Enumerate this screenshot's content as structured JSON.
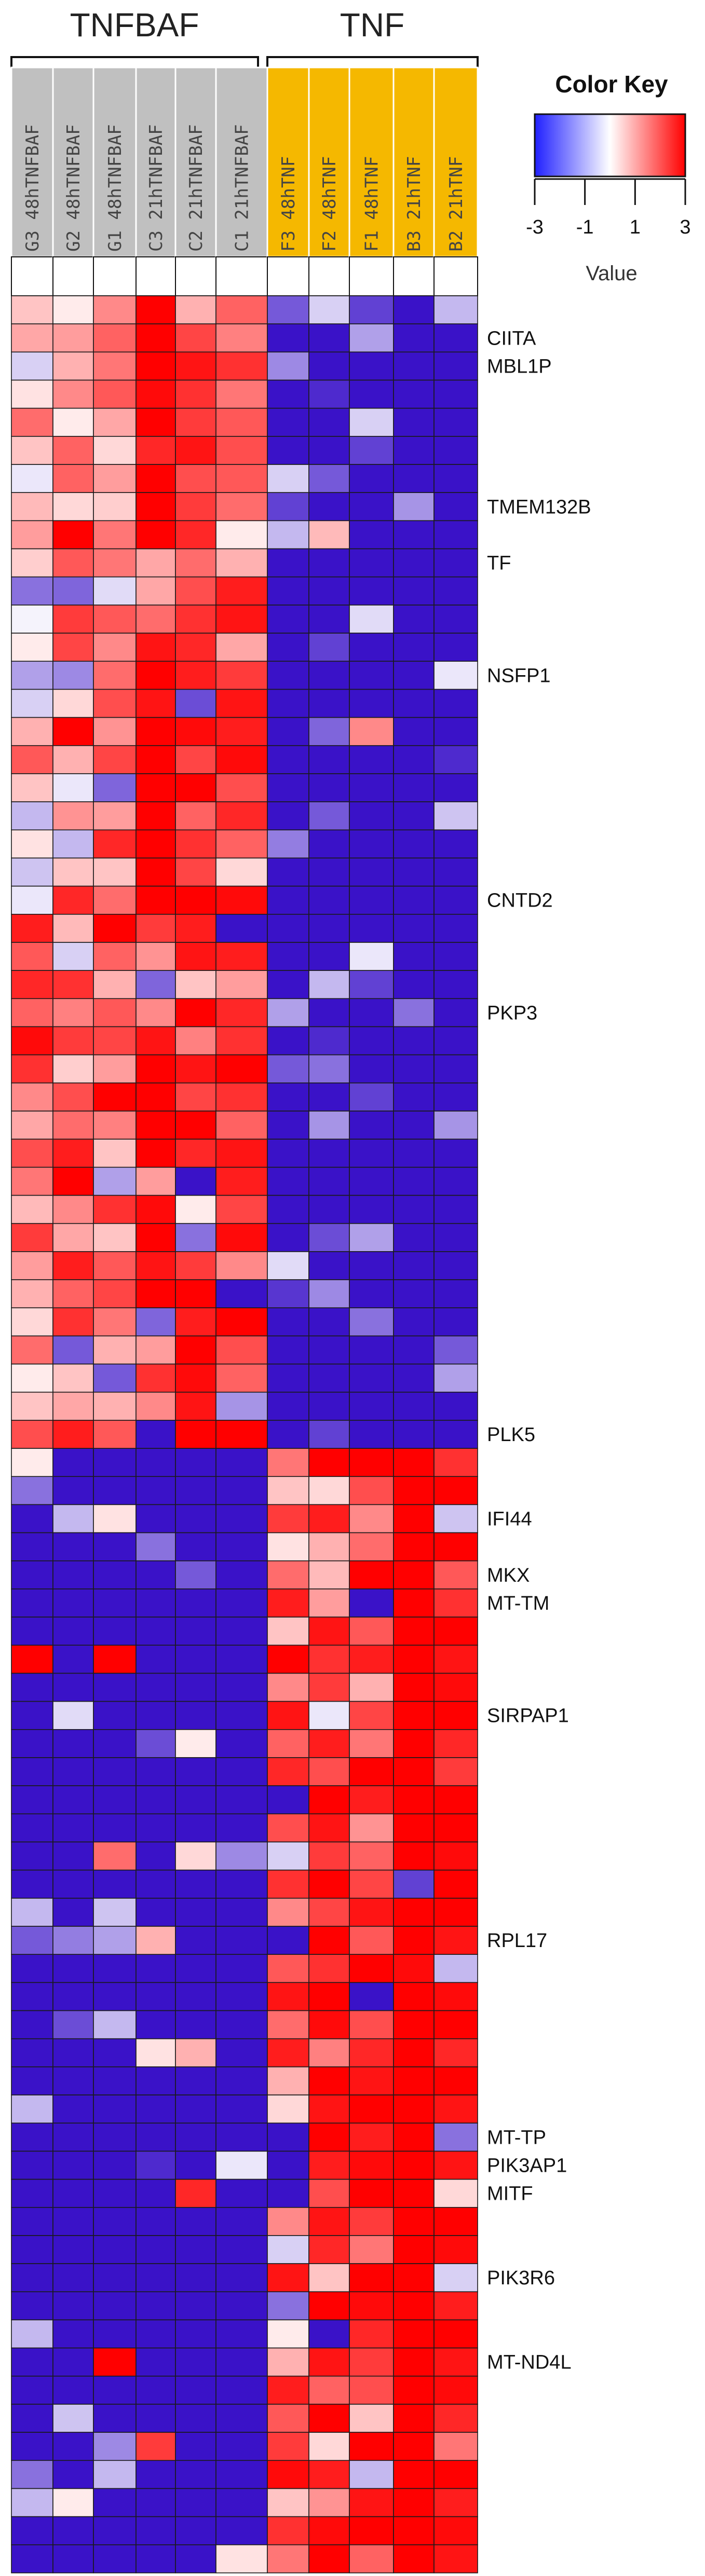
{
  "chart_data": {
    "type": "heatmap",
    "groups": [
      {
        "name": "TNFBAF",
        "columns": [
          0,
          1,
          2,
          3,
          4,
          5
        ]
      },
      {
        "name": "TNF",
        "columns": [
          6,
          7,
          8,
          9,
          10
        ]
      }
    ],
    "columns": [
      "G3 48hTNFBAF",
      "G2 48hTNFBAF",
      "G1 48hTNFBAF",
      "C3 21hTNFBAF",
      "C2 21hTNFBAF",
      "C1 21hTNFBAF",
      "F3 48hTNF",
      "F2 48hTNF",
      "F1 48hTNF",
      "B3 21hTNF",
      "B2 21hTNF"
    ],
    "column_header_colors": {
      "TNFBAF": "#c0c0c0",
      "TNF": "#f5b800"
    },
    "color_scale": {
      "min": -3,
      "max": 3,
      "low": "#2020ff",
      "mid": "#ffffff",
      "high": "#ff0000",
      "cell_low": "#3a12c8"
    },
    "color_key": {
      "title": "Color Key",
      "ticks": [
        -3,
        -1,
        1,
        3
      ],
      "axis_label": "Value"
    },
    "row_labels": [
      {
        "row": 1,
        "label": "CIITA"
      },
      {
        "row": 2,
        "label": "MBL1P"
      },
      {
        "row": 7,
        "label": "TMEM132B"
      },
      {
        "row": 9,
        "label": "TF"
      },
      {
        "row": 13,
        "label": "NSFP1"
      },
      {
        "row": 21,
        "label": "CNTD2"
      },
      {
        "row": 25,
        "label": "PKP3"
      },
      {
        "row": 40,
        "label": "PLK5"
      },
      {
        "row": 43,
        "label": "IFI44"
      },
      {
        "row": 45,
        "label": "MKX"
      },
      {
        "row": 46,
        "label": "MT-TM"
      },
      {
        "row": 50,
        "label": "SIRPAP1"
      },
      {
        "row": 58,
        "label": "RPL17"
      },
      {
        "row": 65,
        "label": "MT-TP"
      },
      {
        "row": 66,
        "label": "PIK3AP1"
      },
      {
        "row": 67,
        "label": "MITF"
      },
      {
        "row": 70,
        "label": "PIK3R6"
      },
      {
        "row": 73,
        "label": "MT-ND4L"
      }
    ],
    "values": [
      [
        0.6,
        0.2,
        1.2,
        2.6,
        0.8,
        1.6,
        -1.4,
        -0.4,
        -1.6,
        -2.5,
        -0.6
      ],
      [
        0.9,
        1.0,
        1.6,
        2.7,
        1.9,
        1.3,
        -2.2,
        -2.4,
        -0.8,
        -2.3,
        -2.2
      ],
      [
        -0.4,
        0.8,
        1.4,
        2.9,
        2.4,
        2.1,
        -1.0,
        -2.3,
        -2.6,
        -2.2,
        -2.0
      ],
      [
        0.3,
        1.2,
        1.7,
        2.5,
        2.1,
        1.4,
        -2.3,
        -1.8,
        -2.2,
        -2.6,
        -2.0
      ],
      [
        1.5,
        0.2,
        0.9,
        2.8,
        2.0,
        1.7,
        -2.2,
        -2.3,
        -0.4,
        -2.4,
        -2.1
      ],
      [
        0.6,
        1.6,
        0.4,
        2.2,
        2.4,
        1.8,
        -2.5,
        -2.2,
        -1.6,
        -2.3,
        -2.0
      ],
      [
        -0.2,
        1.6,
        1.0,
        3.0,
        1.8,
        1.7,
        -0.4,
        -1.4,
        -2.7,
        -2.5,
        -2.1
      ],
      [
        0.7,
        0.4,
        0.5,
        2.9,
        2.0,
        1.5,
        -1.6,
        -2.3,
        -2.0,
        -0.9,
        -2.5
      ],
      [
        1.0,
        2.7,
        1.4,
        2.7,
        2.2,
        0.2,
        -0.6,
        0.7,
        -2.6,
        -2.5,
        -2.3
      ],
      [
        0.5,
        1.7,
        1.4,
        0.9,
        1.5,
        0.8,
        -2.6,
        -2.3,
        -2.4,
        -2.5,
        -2.2
      ],
      [
        -1.2,
        -1.3,
        -0.3,
        0.9,
        1.8,
        2.3,
        -2.6,
        -2.4,
        -2.1,
        -2.3,
        -2.2
      ],
      [
        -0.1,
        2.0,
        1.7,
        1.5,
        2.1,
        2.4,
        -2.5,
        -2.2,
        -0.3,
        -2.5,
        -2.3
      ],
      [
        0.2,
        1.9,
        1.2,
        2.4,
        2.2,
        0.9,
        -2.2,
        -1.6,
        -2.4,
        -2.3,
        -2.2
      ],
      [
        -0.8,
        -1.0,
        1.5,
        2.6,
        2.3,
        2.0,
        -2.4,
        -2.2,
        -2.3,
        -2.5,
        -0.2
      ],
      [
        -0.4,
        0.4,
        1.8,
        2.4,
        -1.5,
        2.4,
        -2.5,
        -2.2,
        -2.6,
        -2.4,
        -2.2
      ],
      [
        0.8,
        2.8,
        1.1,
        2.9,
        2.5,
        2.3,
        -2.6,
        -1.3,
        1.2,
        -2.2,
        -2.1
      ],
      [
        1.7,
        0.8,
        1.9,
        2.7,
        1.9,
        2.5,
        -2.4,
        -2.2,
        -2.3,
        -2.3,
        -1.8
      ],
      [
        0.6,
        -0.2,
        -1.3,
        2.8,
        2.7,
        1.8,
        -2.5,
        -2.4,
        -2.2,
        -2.6,
        -2.1
      ],
      [
        -0.6,
        1.1,
        1.0,
        2.6,
        1.6,
        2.2,
        -2.3,
        -1.4,
        -2.5,
        -2.4,
        -0.5
      ],
      [
        0.3,
        -0.6,
        2.2,
        2.8,
        2.1,
        1.6,
        -1.1,
        -2.2,
        -2.3,
        -2.2,
        -2.2
      ],
      [
        -0.5,
        0.6,
        0.6,
        2.7,
        1.9,
        0.4,
        -2.6,
        -2.3,
        -2.4,
        -2.6,
        -2.3
      ],
      [
        -0.2,
        2.2,
        1.5,
        2.9,
        2.6,
        2.5,
        -2.5,
        -2.1,
        -2.2,
        -2.5,
        -2.2
      ],
      [
        2.3,
        0.7,
        2.6,
        2.0,
        2.3,
        -2.2,
        -2.4,
        -2.6,
        -2.3,
        -2.4,
        -2.3
      ],
      [
        1.7,
        -0.4,
        1.6,
        1.1,
        2.4,
        2.3,
        -2.2,
        -2.0,
        -0.2,
        -2.3,
        -2.1
      ],
      [
        2.2,
        2.1,
        0.8,
        -1.3,
        0.6,
        1.0,
        -2.3,
        -0.6,
        -1.6,
        -2.5,
        -2.2
      ],
      [
        1.6,
        1.3,
        1.7,
        1.2,
        2.7,
        2.2,
        -0.8,
        -2.2,
        -2.4,
        -1.2,
        -2.3
      ],
      [
        2.5,
        2.0,
        1.9,
        2.4,
        1.3,
        2.1,
        -2.6,
        -1.8,
        -2.2,
        -2.4,
        -2.1
      ],
      [
        2.1,
        0.5,
        1.0,
        2.8,
        2.4,
        2.6,
        -1.4,
        -1.2,
        -2.3,
        -2.2,
        -2.2
      ],
      [
        1.2,
        1.8,
        2.6,
        2.8,
        1.9,
        2.1,
        -2.3,
        -2.1,
        -1.6,
        -2.5,
        -2.2
      ],
      [
        0.9,
        1.5,
        1.3,
        2.6,
        2.7,
        1.6,
        -2.0,
        -0.9,
        -2.6,
        -2.3,
        -0.9
      ],
      [
        1.8,
        2.3,
        0.6,
        2.6,
        2.2,
        2.4,
        -2.4,
        -2.2,
        -2.3,
        -2.5,
        -2.3
      ],
      [
        1.4,
        2.6,
        -0.8,
        1.0,
        -2.0,
        2.3,
        -2.3,
        -2.0,
        -2.1,
        -2.4,
        -2.2
      ],
      [
        0.7,
        1.2,
        2.1,
        2.5,
        0.2,
        1.9,
        -2.6,
        -2.4,
        -2.3,
        -2.5,
        -2.1
      ],
      [
        2.0,
        0.9,
        0.6,
        2.9,
        -1.2,
        2.5,
        -2.3,
        -1.5,
        -0.8,
        -2.3,
        -2.2
      ],
      [
        1.0,
        2.3,
        1.7,
        2.4,
        2.0,
        1.2,
        -0.3,
        -2.1,
        -2.2,
        -2.6,
        -2.2
      ],
      [
        0.8,
        1.6,
        1.9,
        2.7,
        2.6,
        -2.0,
        -1.7,
        -1.0,
        -2.5,
        -2.3,
        -2.4
      ],
      [
        0.4,
        2.1,
        1.4,
        -1.3,
        2.3,
        2.6,
        -2.2,
        -2.0,
        -1.2,
        -2.5,
        -2.1
      ],
      [
        1.5,
        -1.4,
        0.8,
        1.0,
        2.7,
        1.8,
        -2.0,
        -2.4,
        -2.3,
        -2.2,
        -1.4
      ],
      [
        0.2,
        0.6,
        -1.4,
        2.1,
        2.5,
        1.6,
        -2.4,
        -2.2,
        -2.1,
        -2.3,
        -0.8
      ],
      [
        0.6,
        0.9,
        0.8,
        1.2,
        2.4,
        -0.9,
        -2.6,
        -2.1,
        -2.4,
        -2.5,
        -2.2
      ],
      [
        1.8,
        2.3,
        1.7,
        -2.3,
        2.6,
        2.7,
        -2.2,
        -1.6,
        -2.2,
        -2.6,
        -2.2
      ],
      [
        0.2,
        -2.4,
        -2.4,
        -2.5,
        -2.4,
        -2.3,
        1.4,
        2.6,
        2.8,
        2.9,
        2.1
      ],
      [
        -1.2,
        -2.2,
        -2.2,
        -2.3,
        -2.3,
        -2.1,
        0.6,
        0.4,
        1.8,
        2.7,
        2.6
      ],
      [
        -2.5,
        -0.6,
        0.3,
        -2.4,
        -2.4,
        -2.3,
        2.0,
        2.3,
        1.2,
        2.8,
        -0.5
      ],
      [
        -2.4,
        -2.3,
        -2.6,
        -1.2,
        -2.4,
        -2.2,
        0.3,
        0.8,
        1.5,
        3.0,
        2.6
      ],
      [
        -2.3,
        -2.6,
        -2.5,
        -2.2,
        -1.4,
        -2.4,
        1.5,
        0.7,
        2.7,
        2.8,
        1.7
      ],
      [
        -2.4,
        -2.3,
        -2.2,
        -2.4,
        -2.3,
        -2.1,
        2.3,
        1.0,
        -2.3,
        2.9,
        2.1
      ],
      [
        -2.5,
        -2.4,
        -2.5,
        -2.3,
        -2.4,
        -2.2,
        0.6,
        2.4,
        1.7,
        2.6,
        2.9
      ],
      [
        2.8,
        -2.3,
        2.6,
        -2.4,
        -2.5,
        -2.4,
        2.6,
        2.1,
        2.3,
        3.0,
        2.4
      ],
      [
        -2.2,
        -2.4,
        -2.3,
        -2.2,
        -2.3,
        -2.1,
        1.2,
        2.0,
        0.8,
        2.9,
        2.5
      ],
      [
        -2.6,
        -0.3,
        -2.4,
        -2.4,
        -2.3,
        -2.2,
        2.4,
        -0.2,
        1.9,
        2.7,
        2.6
      ],
      [
        -2.3,
        -2.2,
        -2.5,
        -1.5,
        0.2,
        -2.3,
        1.6,
        2.3,
        1.4,
        3.0,
        2.2
      ],
      [
        -2.4,
        -2.3,
        -2.2,
        -2.4,
        -2.2,
        -2.4,
        2.2,
        1.8,
        2.6,
        2.8,
        2.0
      ],
      [
        -2.5,
        -2.4,
        -2.3,
        -2.3,
        -2.5,
        -2.2,
        -2.2,
        2.6,
        2.3,
        2.7,
        2.6
      ],
      [
        -2.2,
        -2.3,
        -2.4,
        -2.6,
        -2.3,
        -2.3,
        1.8,
        2.4,
        1.1,
        2.9,
        2.8
      ],
      [
        -2.3,
        -2.5,
        1.5,
        -2.2,
        0.4,
        -1.0,
        -0.4,
        2.0,
        1.6,
        2.8,
        2.5
      ],
      [
        -2.4,
        -2.2,
        -2.3,
        -2.4,
        -2.2,
        -2.3,
        2.1,
        2.7,
        1.9,
        -1.6,
        2.7
      ],
      [
        -0.6,
        -2.3,
        -0.5,
        -2.3,
        -2.5,
        -2.2,
        1.2,
        1.9,
        2.4,
        2.8,
        2.6
      ],
      [
        -1.4,
        -1.1,
        -0.8,
        0.8,
        -2.0,
        -2.1,
        -2.1,
        2.6,
        1.7,
        2.9,
        2.4
      ],
      [
        -2.3,
        -2.4,
        -2.2,
        -2.5,
        -2.3,
        -2.3,
        1.7,
        2.1,
        2.7,
        2.5,
        -0.6
      ],
      [
        -2.4,
        -2.3,
        -2.3,
        -2.2,
        -2.4,
        -2.2,
        2.4,
        2.8,
        -2.3,
        2.8,
        2.5
      ],
      [
        -2.2,
        -1.5,
        -0.6,
        -2.4,
        -2.1,
        -2.3,
        1.5,
        2.5,
        1.8,
        3.0,
        2.7
      ],
      [
        -2.3,
        -2.2,
        -2.5,
        0.3,
        0.8,
        -2.2,
        2.3,
        1.3,
        2.2,
        2.9,
        2.2
      ],
      [
        -2.5,
        -2.4,
        -2.3,
        -2.6,
        -2.2,
        -2.4,
        0.8,
        2.7,
        2.4,
        2.8,
        2.6
      ],
      [
        -0.6,
        -2.2,
        -2.4,
        -2.3,
        -2.4,
        -2.2,
        0.4,
        2.4,
        2.8,
        2.9,
        2.4
      ],
      [
        -2.4,
        -2.3,
        -2.2,
        -2.4,
        -2.3,
        -2.3,
        -2.2,
        2.6,
        2.3,
        2.8,
        -1.2
      ],
      [
        -2.3,
        -2.5,
        -2.3,
        -1.8,
        -2.4,
        -0.2,
        -2.4,
        2.3,
        2.5,
        3.0,
        2.4
      ],
      [
        -2.2,
        -2.3,
        -2.4,
        -2.2,
        2.2,
        -2.3,
        -2.3,
        1.8,
        2.7,
        2.9,
        0.4
      ],
      [
        -2.4,
        -2.2,
        -2.2,
        -2.5,
        -2.3,
        -2.2,
        1.2,
        2.4,
        2.0,
        2.8,
        2.6
      ],
      [
        -2.3,
        -2.4,
        -2.3,
        -2.2,
        -2.3,
        -2.4,
        -0.4,
        2.2,
        1.4,
        3.0,
        2.5
      ],
      [
        -2.2,
        -2.3,
        -2.5,
        -2.4,
        -2.2,
        -2.3,
        2.4,
        0.6,
        2.6,
        2.7,
        -0.4
      ],
      [
        -2.5,
        -2.2,
        -2.3,
        -2.3,
        -2.5,
        -2.2,
        -1.2,
        2.7,
        2.5,
        2.9,
        2.3
      ],
      [
        -0.6,
        -2.3,
        -2.2,
        -2.4,
        -2.3,
        -2.3,
        0.2,
        -2.2,
        2.2,
        2.8,
        2.6
      ],
      [
        -2.4,
        -2.4,
        2.6,
        -2.2,
        -2.4,
        -2.1,
        0.8,
        2.4,
        2.0,
        3.0,
        2.4
      ],
      [
        -2.3,
        -2.2,
        -2.3,
        -2.4,
        -2.2,
        -2.3,
        2.3,
        1.6,
        1.8,
        2.8,
        2.5
      ],
      [
        -2.2,
        -0.5,
        -2.4,
        -2.2,
        -2.3,
        -2.2,
        1.7,
        2.8,
        0.6,
        2.9,
        2.2
      ],
      [
        -2.4,
        -2.3,
        -1.0,
        2.0,
        -2.4,
        -2.4,
        2.0,
        0.4,
        2.6,
        2.7,
        1.4
      ],
      [
        -1.2,
        -2.4,
        -0.6,
        -2.3,
        -2.2,
        -2.1,
        2.5,
        2.3,
        -0.6,
        3.0,
        2.6
      ],
      [
        -0.6,
        0.2,
        -2.3,
        -2.4,
        -2.3,
        -2.3,
        0.6,
        1.1,
        2.4,
        2.8,
        2.3
      ],
      [
        -2.3,
        -2.2,
        -2.2,
        -2.2,
        -2.5,
        -2.2,
        2.1,
        2.5,
        2.7,
        2.9,
        2.5
      ],
      [
        -2.4,
        -2.3,
        -2.4,
        -2.3,
        -2.2,
        0.3,
        1.4,
        2.7,
        1.6,
        2.8,
        2.4
      ]
    ]
  }
}
